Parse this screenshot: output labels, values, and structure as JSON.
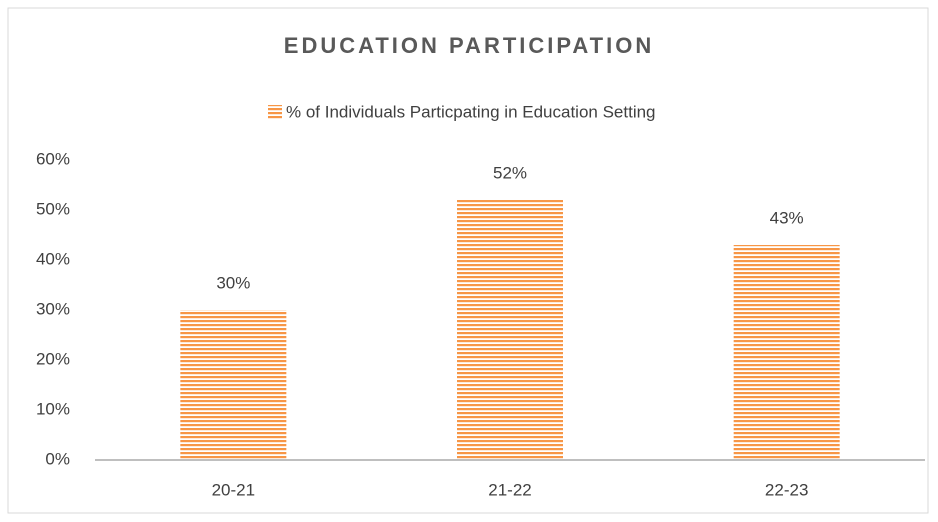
{
  "chart_data": {
    "type": "bar",
    "title": "EDUCATION PARTICIPATION",
    "series": [
      {
        "name": "% of Individuals Particpating in Education Setting",
        "color": "#f79646",
        "values": [
          30,
          52,
          43
        ],
        "value_labels": [
          "30%",
          "52%",
          "43%"
        ]
      }
    ],
    "categories": [
      "20-21",
      "21-22",
      "22-23"
    ],
    "ylim": [
      0,
      60
    ],
    "yticks": [
      {
        "value": 0,
        "label": "0%"
      },
      {
        "value": 10,
        "label": "10%"
      },
      {
        "value": 20,
        "label": "20%"
      },
      {
        "value": 30,
        "label": "30%"
      },
      {
        "value": 40,
        "label": "40%"
      },
      {
        "value": 50,
        "label": "50%"
      },
      {
        "value": 60,
        "label": "60%"
      }
    ],
    "legend": "top",
    "grid": false
  }
}
